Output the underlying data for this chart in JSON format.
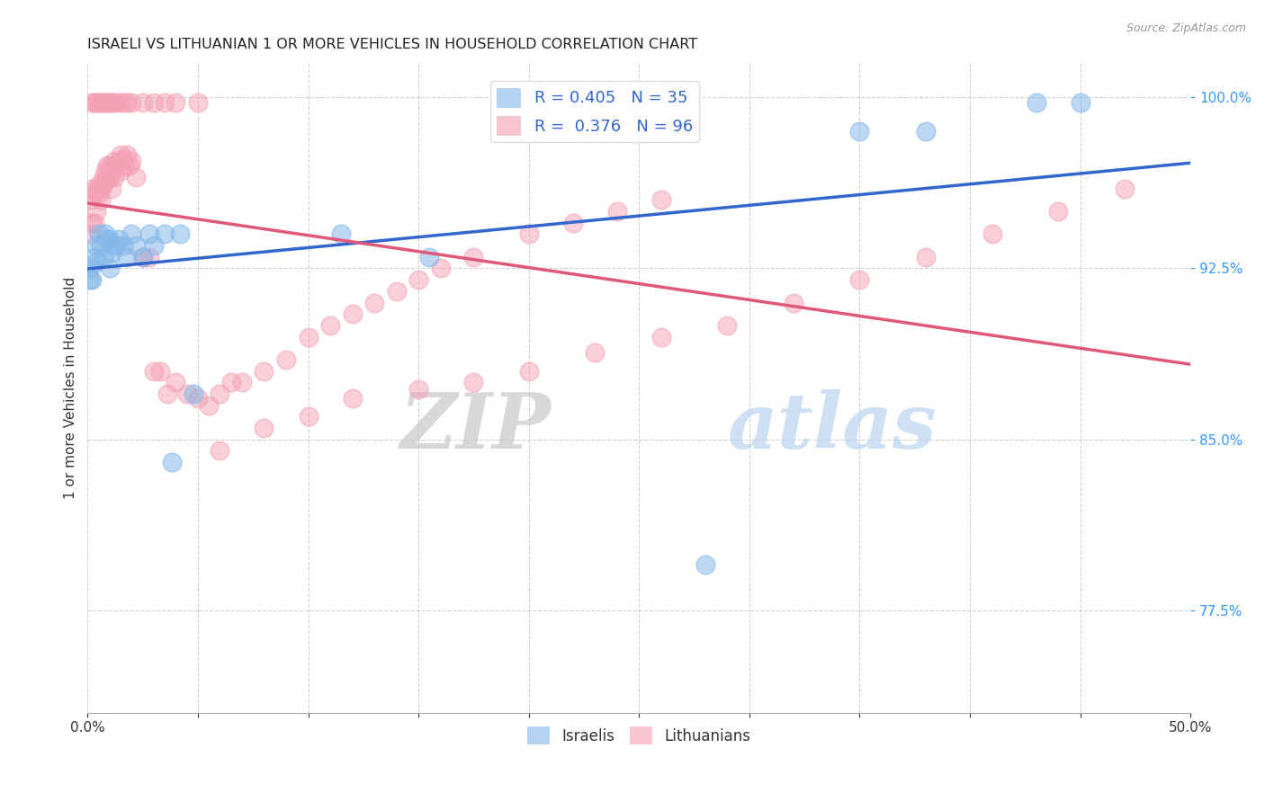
{
  "title": "ISRAELI VS LITHUANIAN 1 OR MORE VEHICLES IN HOUSEHOLD CORRELATION CHART",
  "source": "Source: ZipAtlas.com",
  "ylabel": "1 or more Vehicles in Household",
  "xlim": [
    0.0,
    0.5
  ],
  "ylim": [
    0.73,
    1.015
  ],
  "yticks": [
    0.775,
    0.85,
    0.925,
    1.0
  ],
  "yticklabels": [
    "77.5%",
    "85.0%",
    "92.5%",
    "100.0%"
  ],
  "xtick_positions": [
    0.0,
    0.05,
    0.1,
    0.15,
    0.2,
    0.25,
    0.3,
    0.35,
    0.4,
    0.45,
    0.5
  ],
  "xtick_labels": [
    "0.0%",
    "",
    "",
    "",
    "",
    "",
    "",
    "",
    "",
    "",
    "50.0%"
  ],
  "israeli_color": "#85b8e8",
  "lithuanian_color": "#f4a0b5",
  "israeli_line_color": "#3366cc",
  "lithuanian_line_color": "#e05878",
  "ytick_color": "#3399ff",
  "watermark_zip": "ZIP",
  "watermark_atlas": "atlas",
  "israeli_x": [
    0.001,
    0.001,
    0.002,
    0.003,
    0.004,
    0.004,
    0.005,
    0.006,
    0.007,
    0.008,
    0.009,
    0.01,
    0.01,
    0.011,
    0.012,
    0.013,
    0.014,
    0.016,
    0.018,
    0.02,
    0.022,
    0.025,
    0.028,
    0.03,
    0.035,
    0.038,
    0.042,
    0.048,
    0.115,
    0.155,
    0.28,
    0.35,
    0.38,
    0.43,
    0.45
  ],
  "israeli_y": [
    0.92,
    0.925,
    0.92,
    0.93,
    0.928,
    0.935,
    0.94,
    0.935,
    0.93,
    0.94,
    0.938,
    0.925,
    0.938,
    0.932,
    0.935,
    0.935,
    0.938,
    0.935,
    0.93,
    0.94,
    0.935,
    0.93,
    0.94,
    0.935,
    0.94,
    0.84,
    0.94,
    0.87,
    0.94,
    0.93,
    0.795,
    0.985,
    0.985,
    0.998,
    0.998
  ],
  "lithuanian_x": [
    0.001,
    0.001,
    0.002,
    0.002,
    0.003,
    0.003,
    0.004,
    0.004,
    0.005,
    0.005,
    0.006,
    0.006,
    0.007,
    0.007,
    0.008,
    0.008,
    0.009,
    0.009,
    0.01,
    0.01,
    0.011,
    0.011,
    0.012,
    0.012,
    0.013,
    0.014,
    0.015,
    0.015,
    0.016,
    0.017,
    0.018,
    0.019,
    0.02,
    0.022,
    0.025,
    0.028,
    0.03,
    0.033,
    0.036,
    0.04,
    0.045,
    0.05,
    0.055,
    0.06,
    0.065,
    0.07,
    0.08,
    0.09,
    0.1,
    0.11,
    0.12,
    0.13,
    0.14,
    0.15,
    0.16,
    0.175,
    0.2,
    0.22,
    0.24,
    0.26,
    0.002,
    0.003,
    0.004,
    0.005,
    0.006,
    0.007,
    0.008,
    0.009,
    0.01,
    0.011,
    0.012,
    0.014,
    0.016,
    0.018,
    0.02,
    0.025,
    0.03,
    0.035,
    0.04,
    0.05,
    0.06,
    0.08,
    0.1,
    0.12,
    0.15,
    0.175,
    0.2,
    0.23,
    0.26,
    0.29,
    0.32,
    0.35,
    0.38,
    0.41,
    0.44,
    0.47
  ],
  "lithuanian_y": [
    0.96,
    0.94,
    0.955,
    0.945,
    0.945,
    0.958,
    0.95,
    0.96,
    0.958,
    0.962,
    0.96,
    0.955,
    0.965,
    0.962,
    0.964,
    0.968,
    0.965,
    0.97,
    0.965,
    0.97,
    0.968,
    0.96,
    0.972,
    0.965,
    0.97,
    0.972,
    0.975,
    0.968,
    0.973,
    0.97,
    0.975,
    0.97,
    0.972,
    0.965,
    0.93,
    0.93,
    0.88,
    0.88,
    0.87,
    0.875,
    0.87,
    0.868,
    0.865,
    0.87,
    0.875,
    0.875,
    0.88,
    0.885,
    0.895,
    0.9,
    0.905,
    0.91,
    0.915,
    0.92,
    0.925,
    0.93,
    0.94,
    0.945,
    0.95,
    0.955,
    0.998,
    0.998,
    0.998,
    0.998,
    0.998,
    0.998,
    0.998,
    0.998,
    0.998,
    0.998,
    0.998,
    0.998,
    0.998,
    0.998,
    0.998,
    0.998,
    0.998,
    0.998,
    0.998,
    0.998,
    0.845,
    0.855,
    0.86,
    0.868,
    0.872,
    0.875,
    0.88,
    0.888,
    0.895,
    0.9,
    0.91,
    0.92,
    0.93,
    0.94,
    0.95,
    0.96
  ]
}
